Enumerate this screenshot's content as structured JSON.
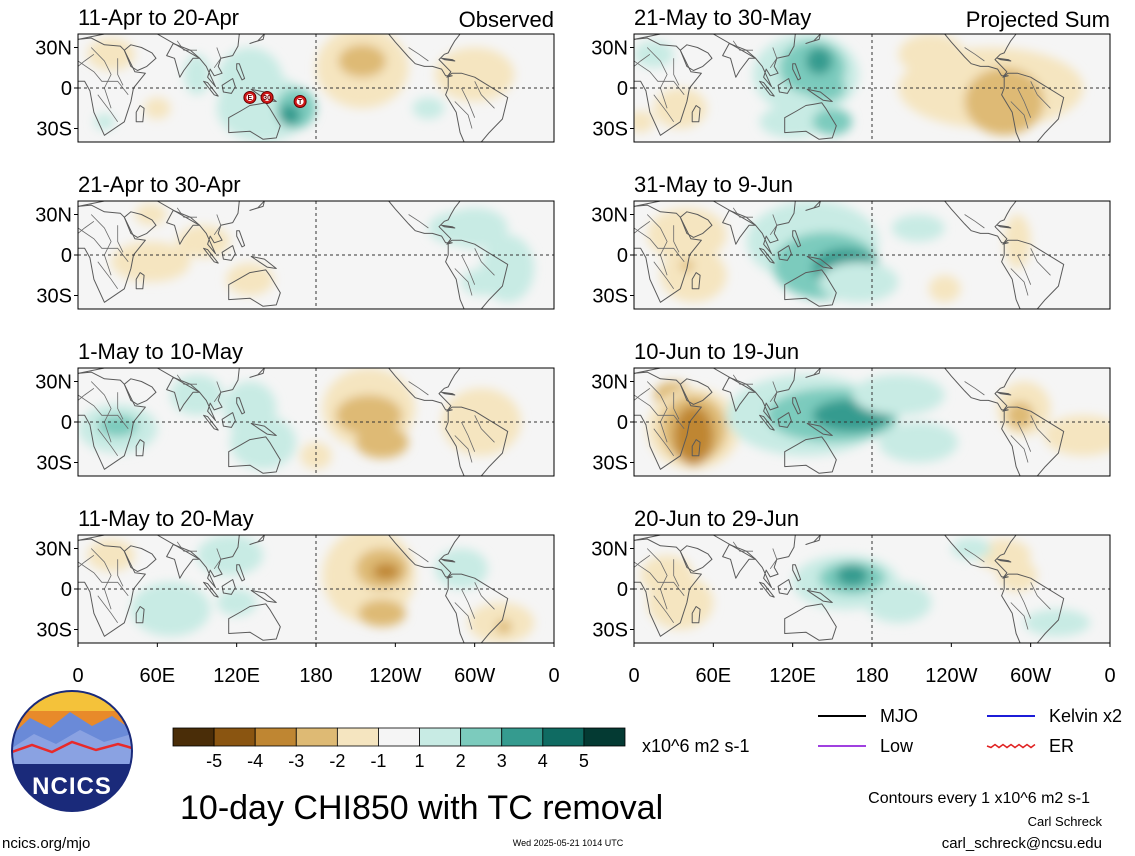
{
  "panels_left": [
    {
      "label": "11-Apr to 20-Apr",
      "tag": "Observed"
    },
    {
      "label": "21-Apr to 30-Apr",
      "tag": ""
    },
    {
      "label": "1-May to 10-May",
      "tag": ""
    },
    {
      "label": "11-May to 20-May",
      "tag": ""
    }
  ],
  "panels_right": [
    {
      "label": "21-May to 30-May",
      "tag": "Projected Sum"
    },
    {
      "label": "31-May to 9-Jun",
      "tag": ""
    },
    {
      "label": "10-Jun to 19-Jun",
      "tag": ""
    },
    {
      "label": "20-Jun to 29-Jun",
      "tag": ""
    }
  ],
  "lat_ticks": [
    "30N",
    "0",
    "30S"
  ],
  "lon_ticks": [
    "0",
    "60E",
    "120E",
    "180",
    "120W",
    "60W",
    "0"
  ],
  "tc_markers": [
    "E",
    "30",
    "T"
  ],
  "colorbar": {
    "colors": [
      "#4a2d08",
      "#8a5511",
      "#bf8632",
      "#deba74",
      "#f5e5c0",
      "#f5f5f5",
      "#c8ebe4",
      "#7ccbbd",
      "#359b8f",
      "#0f6b62",
      "#043a33"
    ],
    "ticks": [
      "-5",
      "-4",
      "-3",
      "-2",
      "-1",
      "1",
      "2",
      "3",
      "4",
      "5"
    ],
    "units": "x10^6 m2 s-1"
  },
  "legend": [
    {
      "label": "MJO",
      "color": "#000000",
      "style": "solid"
    },
    {
      "label": "Kelvin x2",
      "color": "#1c1cd8",
      "style": "solid"
    },
    {
      "label": "Low",
      "color": "#a040e0",
      "style": "solid"
    },
    {
      "label": "ER",
      "color": "#e02020",
      "style": "wavy"
    }
  ],
  "contour_note": "Contours every 1 x10^6 m2 s-1",
  "author": "Carl Schreck",
  "email": "carl_schreck@ncsu.edu",
  "title": "10-day CHI850 with TC removal",
  "site": "ncics.org/mjo",
  "timestamp": "Wed 2025-05-21 1014 UTC",
  "logo_text": "NCICS",
  "chart_data": {
    "type": "heatmap",
    "title": "10-day CHI850 with TC removal",
    "units": "x10^6 m2 s-1",
    "x_ticks": [
      "0",
      "60E",
      "120E",
      "180",
      "120W",
      "60W",
      "0"
    ],
    "y_ticks": [
      "30N",
      "0",
      "30S"
    ],
    "color_levels": [
      -5,
      -4,
      -3,
      -2,
      -1,
      1,
      2,
      3,
      4,
      5
    ],
    "panels": [
      {
        "label": "11-Apr to 20-Apr",
        "type": "Observed"
      },
      {
        "label": "21-Apr to 30-Apr",
        "type": "Observed"
      },
      {
        "label": "1-May to 10-May",
        "type": "Observed"
      },
      {
        "label": "11-May to 20-May",
        "type": "Observed"
      },
      {
        "label": "21-May to 30-May",
        "type": "Projected Sum"
      },
      {
        "label": "31-May to 9-Jun",
        "type": "Projected Sum"
      },
      {
        "label": "10-Jun to 19-Jun",
        "type": "Projected Sum"
      },
      {
        "label": "20-Jun to 29-Jun",
        "type": "Projected Sum"
      }
    ]
  }
}
